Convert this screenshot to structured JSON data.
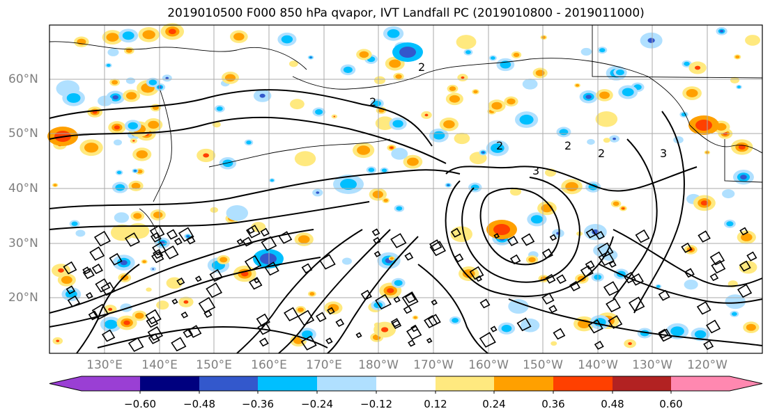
{
  "title": "2019010500 F000 850 hPa qvapor, IVT Landfall PC (2019010800 - 2019011000)",
  "latitude_labels": [
    "60°N",
    "50°N",
    "40°N",
    "30°N",
    "20°N"
  ],
  "longitude_labels": [
    "130°E",
    "140°E",
    "150°E",
    "160°E",
    "170°E",
    "180°W",
    "170°W",
    "160°W",
    "150°W",
    "140°W",
    "130°W",
    "120°W"
  ],
  "contour_labels": [
    "2",
    "2",
    "2",
    "3",
    "3",
    "2",
    "2"
  ],
  "colorbar": {
    "tick_labels": [
      "−0.60",
      "−0.48",
      "−0.36",
      "−0.24",
      "−0.12",
      "0.12",
      "0.24",
      "0.36",
      "0.48",
      "0.60"
    ],
    "colors": [
      "#9a3fd4",
      "#00007f",
      "#3358cc",
      "#00bfff",
      "#b0e0ff",
      "#ffffff",
      "#ffe97f",
      "#ffa000",
      "#ff4000",
      "#b22222",
      "#ff88b0"
    ]
  },
  "colors": {
    "contour": "#000000",
    "grid": "#aaaaaa",
    "coastline": "#000000",
    "frame": "#000000",
    "tick_text": "#7f7f7f"
  }
}
